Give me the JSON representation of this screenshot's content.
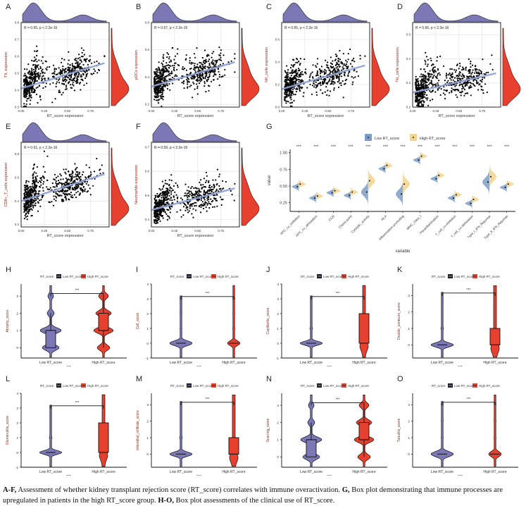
{
  "figure": {
    "caption": {
      "parts": [
        {
          "bold": "A-F,",
          "text": " Assessment of whether kidney transplant rejection score (RT_score) correlates with immune overactivation. "
        },
        {
          "bold": "G,",
          "text": " Box plot demonstrating that immune processes are upregulated in patients in the high RT_score group. "
        },
        {
          "bold": "H-O,",
          "text": " Box plot assessments of the clinical use of RT_score."
        }
      ]
    },
    "colors": {
      "low": "#7b78b5",
      "high": "#e8402f",
      "g_low": "#7c9cc8",
      "g_high": "#f2d48e",
      "fit": "#8fa3d6"
    }
  },
  "chart_data": [
    {
      "panel": "A",
      "type": "scatter",
      "xlabel": "RT_score expression",
      "ylabel": "TIL expression",
      "annotation": "R = 0.65, p < 2.2e-16",
      "xticks": [
        "0.00",
        "0.25",
        "0.50",
        "0.75"
      ],
      "xlim": [
        0,
        0.95
      ],
      "yticks": [
        "0.3",
        "0.4",
        "0.5",
        "0.6",
        "0.7",
        "0.8"
      ],
      "ylim": [
        0.3,
        0.8
      ],
      "fit": [
        [
          0.0,
          0.41
        ],
        [
          0.9,
          0.56
        ]
      ]
    },
    {
      "panel": "B",
      "type": "scatter",
      "xlabel": "RT_score expression",
      "ylabel": "pDCs expression",
      "annotation": "R = 0.67, p < 2.2e-16",
      "xticks": [
        "0.00",
        "0.25",
        "0.50",
        "0.75"
      ],
      "xlim": [
        0,
        0.95
      ],
      "yticks": [
        "0.2",
        "0.4",
        "0.6",
        "0.8"
      ],
      "ylim": [
        0.18,
        0.8
      ],
      "fit": [
        [
          0.0,
          0.33
        ],
        [
          0.9,
          0.51
        ]
      ]
    },
    {
      "panel": "C",
      "type": "scatter",
      "xlabel": "RT_score expression",
      "ylabel": "NK_cells expression",
      "annotation": "R = 0.65, p < 2.2e-16",
      "xticks": [
        "0.00",
        "0.25",
        "0.50",
        "0.75"
      ],
      "xlim": [
        0,
        0.95
      ],
      "yticks": [
        "0.0",
        "0.2",
        "0.4",
        "0.6"
      ],
      "ylim": [
        0.0,
        0.75
      ],
      "fit": [
        [
          0.0,
          0.16
        ],
        [
          0.9,
          0.37
        ]
      ]
    },
    {
      "panel": "D",
      "type": "scatter",
      "xlabel": "RT_score expression",
      "ylabel": "TH_cells expression",
      "annotation": "R = 0.66, p < 2.2e-16",
      "xticks": [
        "0.00",
        "0.25",
        "0.50",
        "0.75"
      ],
      "xlim": [
        0,
        0.95
      ],
      "yticks": [
        "0.2",
        "0.3",
        "0.4",
        "0.5"
      ],
      "ylim": [
        0.2,
        0.55
      ],
      "fit": [
        [
          0.0,
          0.26
        ],
        [
          0.9,
          0.34
        ]
      ]
    },
    {
      "panel": "E",
      "type": "scatter",
      "xlabel": "RT_score expression",
      "ylabel": "CD8+_T_cells expression",
      "annotation": "R = 0.61, p < 2.2e-16",
      "xticks": [
        "0.00",
        "0.25",
        "0.50",
        "0.75"
      ],
      "xlim": [
        0,
        0.95
      ],
      "yticks": [
        "0.2",
        "0.4",
        "0.6",
        "0.8"
      ],
      "ylim": [
        0.18,
        0.9
      ],
      "fit": [
        [
          0.0,
          0.4
        ],
        [
          0.9,
          0.63
        ]
      ]
    },
    {
      "panel": "F",
      "type": "scatter",
      "xlabel": "RT_score expression",
      "ylabel": "Neutrophils expression",
      "annotation": "R = 0.59, p < 2.2e-16",
      "xticks": [
        "0.00",
        "0.25",
        "0.50",
        "0.75"
      ],
      "xlim": [
        0,
        0.95
      ],
      "yticks": [
        "0.4",
        "0.5",
        "0.6",
        "0.7"
      ],
      "ylim": [
        0.37,
        0.72
      ],
      "fit": [
        [
          0.0,
          0.44
        ],
        [
          0.9,
          0.53
        ]
      ]
    },
    {
      "panel": "G",
      "type": "violin",
      "xlabel": "variable",
      "ylabel": "value",
      "legend": [
        "Low RT_score",
        "High RT_score"
      ],
      "legend_position": "top",
      "yticks": [
        "0.25",
        "0.50",
        "0.75",
        "1.00"
      ],
      "ylim": [
        0.12,
        1.05
      ],
      "categories": [
        "APC_co_inhibition",
        "APC_co_stimulation",
        "CCR",
        "Check-point",
        "Cytolytic_activity",
        "HLA",
        "Inflammation-promoting",
        "MHC_class_I",
        "Parainflammation",
        "T_cell_co-inhibition",
        "T_cell_co-stimulation",
        "Type_I_IFN_Reponse",
        "Type_II_IFN_Reponse"
      ],
      "significance": [
        "***",
        "***",
        "***",
        "***",
        "***",
        "***",
        "***",
        "***",
        "***",
        "***",
        "***",
        "***",
        "***"
      ],
      "series": [
        {
          "name": "Low RT_score",
          "medians": [
            0.49,
            0.32,
            0.4,
            0.36,
            0.41,
            0.76,
            0.38,
            0.89,
            0.61,
            0.32,
            0.24,
            0.56,
            0.48
          ]
        },
        {
          "name": "High RT_score",
          "medians": [
            0.53,
            0.35,
            0.43,
            0.41,
            0.58,
            0.81,
            0.53,
            0.95,
            0.66,
            0.37,
            0.3,
            0.64,
            0.53
          ]
        }
      ]
    },
    {
      "panel": "H",
      "type": "violin",
      "ylabel": "Atrophy_score",
      "xlabel": "RT_score",
      "legend_title": "RT_score",
      "legend": [
        "Low RT_score",
        "High RT_score"
      ],
      "categories": [
        "Low RT_score",
        "High RT_score"
      ],
      "yticks": [
        "0",
        "1",
        "2",
        "3"
      ],
      "ylim": [
        -0.6,
        3.7
      ],
      "significance": "***",
      "box": [
        [
          0,
          0,
          1,
          1,
          2
        ],
        [
          0,
          1,
          1,
          2,
          3
        ]
      ],
      "shape": "multi"
    },
    {
      "panel": "I",
      "type": "violin",
      "ylabel": "Cell_score",
      "xlabel": "RT_score",
      "legend_title": "RT_score",
      "legend": [
        "Low RT_score",
        "High RT_score"
      ],
      "categories": [
        "Low RT_score",
        "High RT_score"
      ],
      "yticks": [
        "-1",
        "0",
        "1",
        "2",
        "3",
        "4"
      ],
      "ylim": [
        -1,
        4
      ],
      "significance": "***",
      "box": [
        [
          0,
          0,
          0,
          0,
          0
        ],
        [
          0,
          0,
          0,
          0,
          0
        ]
      ],
      "shape": "zero"
    },
    {
      "panel": "J",
      "type": "violin",
      "ylabel": "Capillaritis_score",
      "xlabel": "RT_score",
      "legend_title": "RT_score",
      "legend": [
        "Low RT_score",
        "High RT_score"
      ],
      "categories": [
        "Low RT_score",
        "High RT_score"
      ],
      "yticks": [
        "-1",
        "0",
        "1",
        "2",
        "3",
        "4"
      ],
      "ylim": [
        -1,
        4
      ],
      "significance": "***",
      "box": [
        [
          0,
          0,
          0,
          0,
          0
        ],
        [
          0,
          0,
          0,
          2,
          2
        ]
      ],
      "shape": "skew"
    },
    {
      "panel": "K",
      "type": "violin",
      "ylabel": "Double_contours_score",
      "xlabel": "RT_score",
      "legend_title": "RT_score",
      "legend": [
        "Low RT_score",
        "High RT_score"
      ],
      "categories": [
        "Low RT_score",
        "High RT_score"
      ],
      "yticks": [
        "0",
        "1",
        "2",
        "3"
      ],
      "ylim": [
        -0.8,
        3.7
      ],
      "significance": "***",
      "box": [
        [
          0,
          0,
          0,
          0,
          0
        ],
        [
          0,
          0,
          0,
          1,
          1
        ]
      ],
      "shape": "skew"
    },
    {
      "panel": "L",
      "type": "violin",
      "ylabel": "Glomerulitis_score",
      "xlabel": "RT_score",
      "legend_title": "RT_score",
      "legend": [
        "Low RT_score",
        "High RT_score"
      ],
      "categories": [
        "Low RT_score",
        "High RT_score"
      ],
      "yticks": [
        "-1",
        "0",
        "1",
        "2",
        "3",
        "4"
      ],
      "ylim": [
        -1,
        4
      ],
      "significance": "***",
      "box": [
        [
          0,
          0,
          0,
          0,
          0
        ],
        [
          0,
          0,
          0,
          2,
          2
        ]
      ],
      "shape": "skew"
    },
    {
      "panel": "M",
      "type": "violin",
      "ylabel": "Interstitial_infiltrate_score",
      "xlabel": "RT_score",
      "legend_title": "RT_score",
      "legend": [
        "Low RT_score",
        "High RT_score"
      ],
      "categories": [
        "Low RT_score",
        "High RT_score"
      ],
      "yticks": [
        "0",
        "1",
        "2",
        "3"
      ],
      "ylim": [
        -0.8,
        3.7
      ],
      "significance": "***",
      "box": [
        [
          0,
          0,
          0,
          0,
          0
        ],
        [
          0,
          0,
          0,
          1,
          1
        ]
      ],
      "shape": "skew"
    },
    {
      "panel": "N",
      "type": "violin",
      "ylabel": "Scarring_score",
      "xlabel": "RT_score",
      "legend_title": "RT_score",
      "legend": [
        "Low RT_score",
        "High RT_score"
      ],
      "categories": [
        "Low RT_score",
        "High RT_score"
      ],
      "yticks": [
        "0",
        "1",
        "2",
        "3"
      ],
      "ylim": [
        -0.6,
        3.7
      ],
      "significance": "***",
      "box": [
        [
          0,
          0,
          1,
          1,
          2
        ],
        [
          0,
          1,
          1,
          2,
          3
        ]
      ],
      "shape": "multi"
    },
    {
      "panel": "O",
      "type": "violin",
      "ylabel": "Tubulitis_score",
      "xlabel": "RT_score",
      "legend_title": "RT_score",
      "legend": [
        "Low RT_score",
        "High RT_score"
      ],
      "categories": [
        "Low RT_score",
        "High RT_score"
      ],
      "yticks": [
        "0",
        "1",
        "2",
        "3"
      ],
      "ylim": [
        -0.8,
        3.7
      ],
      "significance": "***",
      "box": [
        [
          0,
          0,
          0,
          0,
          0
        ],
        [
          0,
          0,
          0,
          0,
          0
        ]
      ],
      "shape": "zero"
    }
  ]
}
